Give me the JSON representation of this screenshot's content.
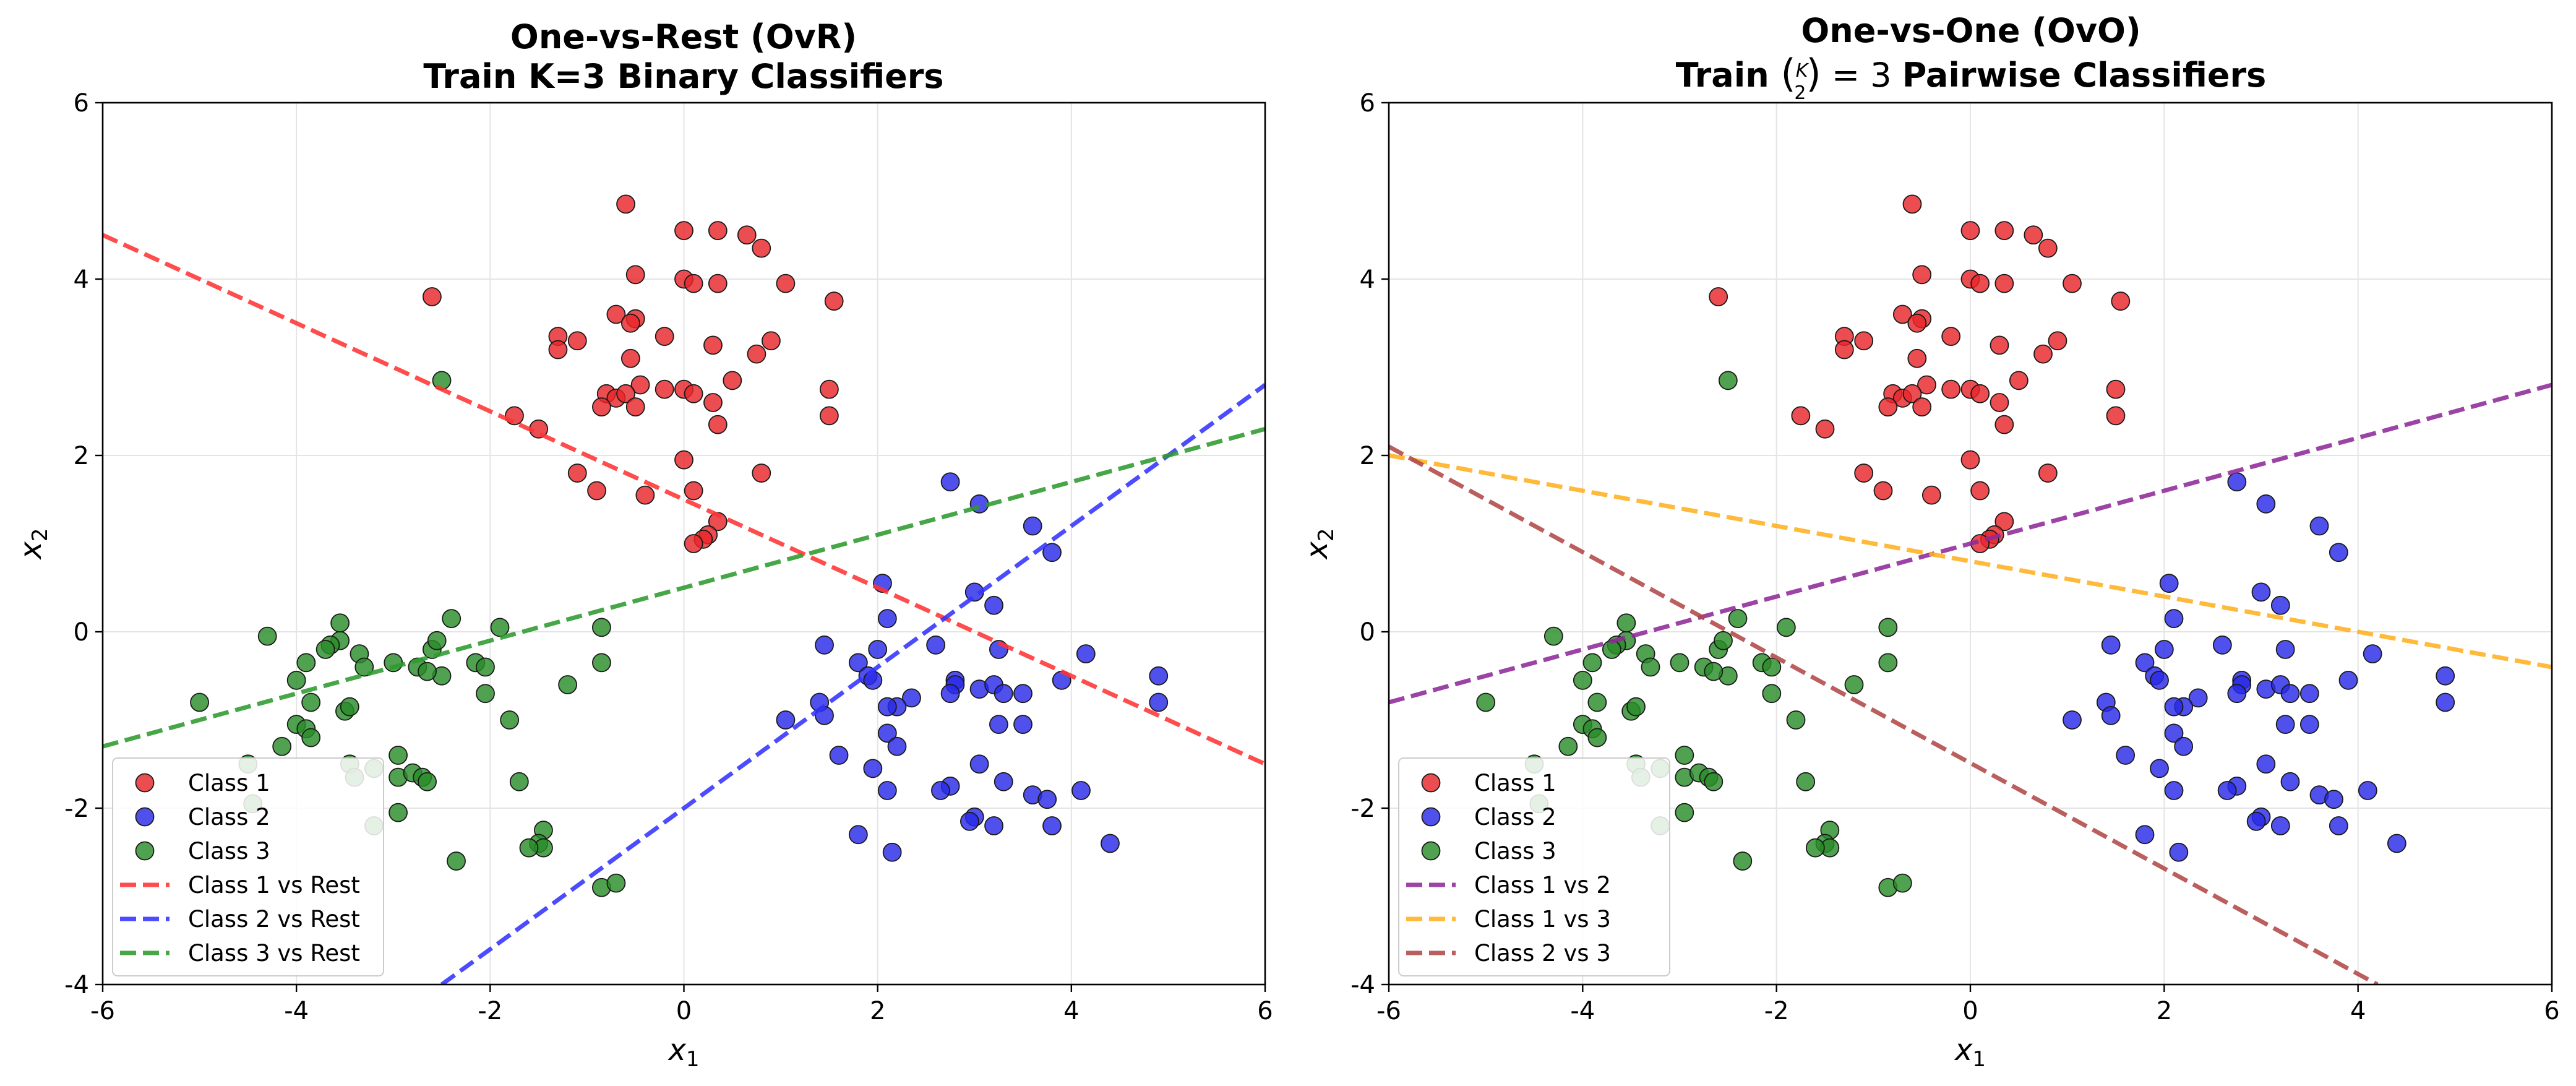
{
  "colors": {
    "class1": "#e8262a",
    "class2": "#2a2ae8",
    "class3": "#2a8c2a",
    "line_class1_rest": "#ff3333",
    "line_class2_rest": "#3333ff",
    "line_class3_rest": "#2e9a2e",
    "line_1v2": "#8e2a98",
    "line_1v3": "#ffb020",
    "line_2v3": "#b04848"
  },
  "chart_data": [
    {
      "type": "scatter",
      "title": [
        "One-vs-Rest (OvR)",
        "Train K=3 Binary Classifiers"
      ],
      "xlabel": "x1",
      "ylabel": "x2",
      "xlim": [
        -6,
        6
      ],
      "ylim": [
        -4,
        6
      ],
      "xticks": [
        -6,
        -4,
        -2,
        0,
        2,
        4,
        6
      ],
      "yticks": [
        -4,
        -2,
        0,
        2,
        4,
        6
      ],
      "grid": true,
      "legend_position": "lower-left",
      "legend": [
        "Class 1",
        "Class 2",
        "Class 3",
        "Class 1 vs Rest",
        "Class 2 vs Rest",
        "Class 3 vs Rest"
      ],
      "lines": [
        {
          "name": "Class 1 vs Rest",
          "x": [
            -6,
            6
          ],
          "y": [
            4.5,
            -1.5
          ],
          "color_key": "line_class1_rest"
        },
        {
          "name": "Class 2 vs Rest",
          "x": [
            -2.5,
            6
          ],
          "y": [
            -4,
            2.8
          ],
          "color_key": "line_class2_rest"
        },
        {
          "name": "Class 3 vs Rest",
          "x": [
            -6,
            6
          ],
          "y": [
            -1.3,
            2.3
          ],
          "color_key": "line_class3_rest"
        }
      ]
    },
    {
      "type": "scatter",
      "title": [
        "One-vs-One (OvO)",
        "Train (K choose 2) = 3 Pairwise Classifiers"
      ],
      "xlabel": "x1",
      "ylabel": "x2",
      "xlim": [
        -6,
        6
      ],
      "ylim": [
        -4,
        6
      ],
      "xticks": [
        -6,
        -4,
        -2,
        0,
        2,
        4,
        6
      ],
      "yticks": [
        -4,
        -2,
        0,
        2,
        4,
        6
      ],
      "grid": true,
      "legend_position": "lower-left",
      "legend": [
        "Class 1",
        "Class 2",
        "Class 3",
        "Class 1 vs 2",
        "Class 1 vs 3",
        "Class 2 vs 3"
      ],
      "lines": [
        {
          "name": "Class 1 vs 2",
          "x": [
            -6,
            6
          ],
          "y": [
            -0.8,
            2.8
          ],
          "color_key": "line_1v2"
        },
        {
          "name": "Class 1 vs 3",
          "x": [
            -6,
            6
          ],
          "y": [
            2.0,
            -0.4
          ],
          "color_key": "line_1v3"
        },
        {
          "name": "Class 2 vs 3",
          "x": [
            -6,
            4.2
          ],
          "y": [
            2.1,
            -4.0
          ],
          "color_key": "line_2v3"
        }
      ]
    }
  ],
  "points": {
    "class1": [
      [
        -0.6,
        4.85
      ],
      [
        0,
        4.55
      ],
      [
        0.35,
        4.55
      ],
      [
        0.65,
        4.5
      ],
      [
        0.8,
        4.35
      ],
      [
        -0.5,
        4.05
      ],
      [
        0,
        4.0
      ],
      [
        0.1,
        3.95
      ],
      [
        0.35,
        3.95
      ],
      [
        1.05,
        3.95
      ],
      [
        -2.6,
        3.8
      ],
      [
        1.55,
        3.75
      ],
      [
        -0.7,
        3.6
      ],
      [
        -0.5,
        3.55
      ],
      [
        -0.55,
        3.5
      ],
      [
        -0.2,
        3.35
      ],
      [
        0.9,
        3.3
      ],
      [
        -1.3,
        3.35
      ],
      [
        -1.1,
        3.3
      ],
      [
        0.3,
        3.25
      ],
      [
        -1.3,
        3.2
      ],
      [
        0.75,
        3.15
      ],
      [
        -0.55,
        3.1
      ],
      [
        -0.2,
        2.75
      ],
      [
        0,
        2.75
      ],
      [
        0.1,
        2.7
      ],
      [
        -0.45,
        2.8
      ],
      [
        -0.8,
        2.7
      ],
      [
        -0.7,
        2.65
      ],
      [
        -0.6,
        2.7
      ],
      [
        0.5,
        2.85
      ],
      [
        1.5,
        2.75
      ],
      [
        -0.85,
        2.55
      ],
      [
        -0.5,
        2.55
      ],
      [
        0.3,
        2.6
      ],
      [
        -1.75,
        2.45
      ],
      [
        1.5,
        2.45
      ],
      [
        -1.5,
        2.3
      ],
      [
        0.35,
        2.35
      ],
      [
        0,
        1.95
      ],
      [
        -1.1,
        1.8
      ],
      [
        0.8,
        1.8
      ],
      [
        -0.9,
        1.6
      ],
      [
        -0.4,
        1.55
      ],
      [
        0.1,
        1.6
      ],
      [
        0.35,
        1.25
      ],
      [
        0.25,
        1.1
      ],
      [
        0.2,
        1.05
      ],
      [
        0.1,
        1.0
      ]
    ],
    "class2": [
      [
        2.75,
        1.7
      ],
      [
        3.05,
        1.45
      ],
      [
        3.6,
        1.2
      ],
      [
        3.8,
        0.9
      ],
      [
        2.05,
        0.55
      ],
      [
        3.0,
        0.45
      ],
      [
        3.2,
        0.3
      ],
      [
        2.1,
        0.15
      ],
      [
        1.45,
        -0.15
      ],
      [
        2.6,
        -0.15
      ],
      [
        2.0,
        -0.2
      ],
      [
        3.25,
        -0.2
      ],
      [
        1.8,
        -0.35
      ],
      [
        4.15,
        -0.25
      ],
      [
        1.9,
        -0.5
      ],
      [
        1.95,
        -0.55
      ],
      [
        2.8,
        -0.55
      ],
      [
        4.9,
        -0.5
      ],
      [
        3.9,
        -0.55
      ],
      [
        2.8,
        -0.6
      ],
      [
        3.05,
        -0.65
      ],
      [
        3.2,
        -0.6
      ],
      [
        3.3,
        -0.7
      ],
      [
        2.75,
        -0.7
      ],
      [
        3.5,
        -0.7
      ],
      [
        1.4,
        -0.8
      ],
      [
        2.35,
        -0.75
      ],
      [
        2.2,
        -0.85
      ],
      [
        2.1,
        -0.85
      ],
      [
        4.9,
        -0.8
      ],
      [
        1.45,
        -0.95
      ],
      [
        1.05,
        -1.0
      ],
      [
        3.25,
        -1.05
      ],
      [
        3.5,
        -1.05
      ],
      [
        2.1,
        -1.15
      ],
      [
        2.2,
        -1.3
      ],
      [
        1.6,
        -1.4
      ],
      [
        3.05,
        -1.5
      ],
      [
        1.95,
        -1.55
      ],
      [
        3.3,
        -1.7
      ],
      [
        2.1,
        -1.8
      ],
      [
        2.75,
        -1.75
      ],
      [
        2.65,
        -1.8
      ],
      [
        3.6,
        -1.85
      ],
      [
        4.1,
        -1.8
      ],
      [
        3.75,
        -1.9
      ],
      [
        3.0,
        -2.1
      ],
      [
        2.95,
        -2.15
      ],
      [
        3.2,
        -2.2
      ],
      [
        3.8,
        -2.2
      ],
      [
        1.8,
        -2.3
      ],
      [
        4.4,
        -2.4
      ],
      [
        2.15,
        -2.5
      ]
    ],
    "class3": [
      [
        -2.5,
        2.85
      ],
      [
        -4.3,
        -0.05
      ],
      [
        -3.55,
        -0.1
      ],
      [
        -3.65,
        -0.15
      ],
      [
        -3.7,
        -0.2
      ],
      [
        -3.35,
        -0.25
      ],
      [
        -3.55,
        0.1
      ],
      [
        -2.4,
        0.15
      ],
      [
        -2.6,
        -0.2
      ],
      [
        -2.55,
        -0.1
      ],
      [
        -1.9,
        0.05
      ],
      [
        -0.85,
        0.05
      ],
      [
        -3.3,
        -0.4
      ],
      [
        -3.9,
        -0.35
      ],
      [
        -3.0,
        -0.35
      ],
      [
        -2.75,
        -0.4
      ],
      [
        -2.15,
        -0.35
      ],
      [
        -2.05,
        -0.4
      ],
      [
        -2.5,
        -0.5
      ],
      [
        -2.65,
        -0.45
      ],
      [
        -4.0,
        -0.55
      ],
      [
        -0.85,
        -0.35
      ],
      [
        -1.2,
        -0.6
      ],
      [
        -3.85,
        -0.8
      ],
      [
        -3.5,
        -0.9
      ],
      [
        -3.45,
        -0.85
      ],
      [
        -2.05,
        -0.7
      ],
      [
        -5.0,
        -0.8
      ],
      [
        -4.0,
        -1.05
      ],
      [
        -1.8,
        -1.0
      ],
      [
        -3.9,
        -1.1
      ],
      [
        -3.85,
        -1.2
      ],
      [
        -4.15,
        -1.3
      ],
      [
        -2.95,
        -1.4
      ],
      [
        -3.45,
        -1.5
      ],
      [
        -3.2,
        -1.55
      ],
      [
        -2.95,
        -1.65
      ],
      [
        -2.8,
        -1.6
      ],
      [
        -2.7,
        -1.65
      ],
      [
        -2.65,
        -1.7
      ],
      [
        -4.5,
        -1.5
      ],
      [
        -3.4,
        -1.65
      ],
      [
        -1.7,
        -1.7
      ],
      [
        -2.95,
        -2.05
      ],
      [
        -4.45,
        -1.95
      ],
      [
        -3.2,
        -2.2
      ],
      [
        -1.45,
        -2.25
      ],
      [
        -1.5,
        -2.4
      ],
      [
        -1.45,
        -2.45
      ],
      [
        -1.6,
        -2.45
      ],
      [
        -2.35,
        -2.6
      ],
      [
        -0.85,
        -2.9
      ],
      [
        -0.7,
        -2.85
      ]
    ]
  }
}
